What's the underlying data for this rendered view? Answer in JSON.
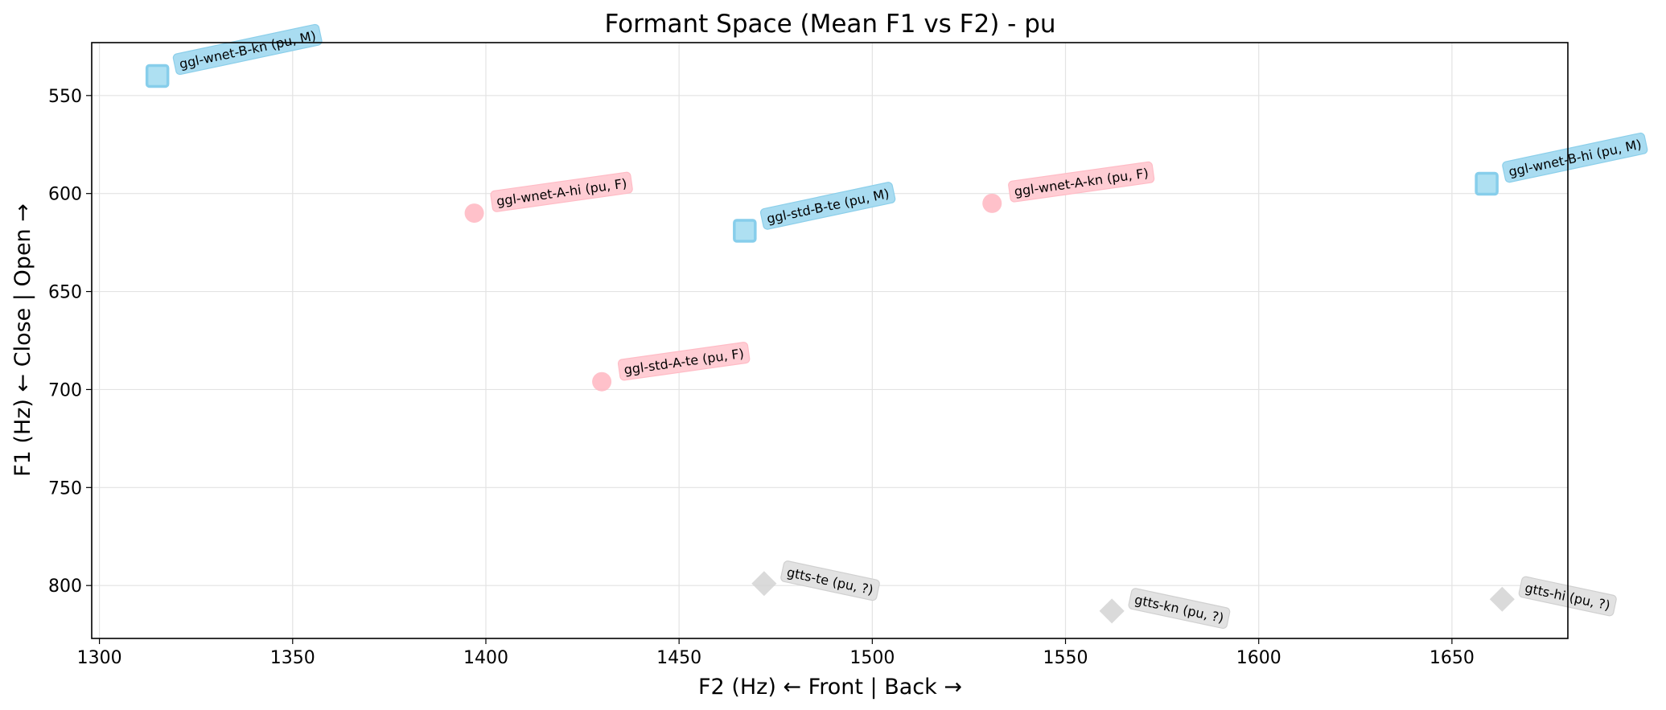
{
  "chart_data": {
    "type": "scatter",
    "title": "Formant Space (Mean F1 vs F2) - pu",
    "xlabel": "F2 (Hz) ← Front | Back →",
    "ylabel": "F1 (Hz) ← Close | Open →",
    "xlim": [
      1298,
      1680
    ],
    "ylim": [
      827,
      523
    ],
    "y_inverted": true,
    "grid": true,
    "xticks": [
      1300,
      1350,
      1400,
      1450,
      1500,
      1550,
      1600,
      1650
    ],
    "yticks": [
      550,
      600,
      650,
      700,
      750,
      800
    ],
    "colors": {
      "M": "#87ceeb",
      "F": "#ffb6c1",
      "?": "#d3d3d3"
    },
    "marker_names": {
      "M": "square",
      "F": "circle",
      "?": "diamond"
    },
    "points": [
      {
        "label": "ggl-wnet-B-kn (pu, M)",
        "gender": "M",
        "x": 1315,
        "y": 540
      },
      {
        "label": "ggl-wnet-A-hi (pu, F)",
        "gender": "F",
        "x": 1397,
        "y": 610
      },
      {
        "label": "ggl-std-B-te (pu, M)",
        "gender": "M",
        "x": 1467,
        "y": 619
      },
      {
        "label": "ggl-wnet-A-kn (pu, F)",
        "gender": "F",
        "x": 1531,
        "y": 605
      },
      {
        "label": "ggl-wnet-B-hi (pu, M)",
        "gender": "M",
        "x": 1659,
        "y": 595
      },
      {
        "label": "ggl-std-A-te (pu, F)",
        "gender": "F",
        "x": 1430,
        "y": 696
      },
      {
        "label": "gtts-te (pu, ?)",
        "gender": "?",
        "x": 1472,
        "y": 799
      },
      {
        "label": "gtts-kn (pu, ?)",
        "gender": "?",
        "x": 1562,
        "y": 813
      },
      {
        "label": "gtts-hi (pu, ?)",
        "gender": "?",
        "x": 1663,
        "y": 807
      }
    ]
  }
}
